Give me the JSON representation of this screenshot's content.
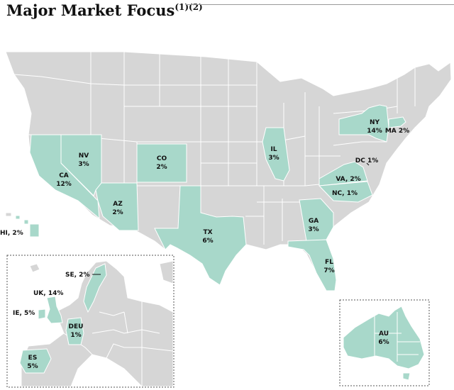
{
  "header": {
    "title": "Major Market Focus",
    "superscript": "(1)(2)"
  },
  "colors": {
    "highlight": "#a8d8ca",
    "base": "#d6d6d6",
    "border": "#ffffff"
  },
  "us_markets": [
    {
      "code": "NY",
      "value": "14%"
    },
    {
      "code": "MA",
      "value": "MA 2%"
    },
    {
      "code": "DC",
      "value": "DC 1%"
    },
    {
      "code": "VA",
      "value": "VA, 2%"
    },
    {
      "code": "NC",
      "value": "NC, 1%"
    },
    {
      "code": "IL",
      "value": "3%"
    },
    {
      "code": "GA",
      "value": "3%"
    },
    {
      "code": "FL",
      "value": "7%"
    },
    {
      "code": "TX",
      "value": "6%"
    },
    {
      "code": "CO",
      "value": "2%"
    },
    {
      "code": "NV",
      "value": "3%"
    },
    {
      "code": "CA",
      "value": "12%"
    },
    {
      "code": "AZ",
      "value": "2%"
    },
    {
      "code": "HI",
      "value": "HI, 2%"
    }
  ],
  "europe_markets": [
    {
      "code": "SE",
      "value": "SE, 2%"
    },
    {
      "code": "UK",
      "value": "UK, 14%"
    },
    {
      "code": "IE",
      "value": "IE, 5%"
    },
    {
      "code": "DEU",
      "value": "1%"
    },
    {
      "code": "ES",
      "value": "5%"
    }
  ],
  "australia_markets": [
    {
      "code": "AU",
      "value": "6%"
    }
  ]
}
